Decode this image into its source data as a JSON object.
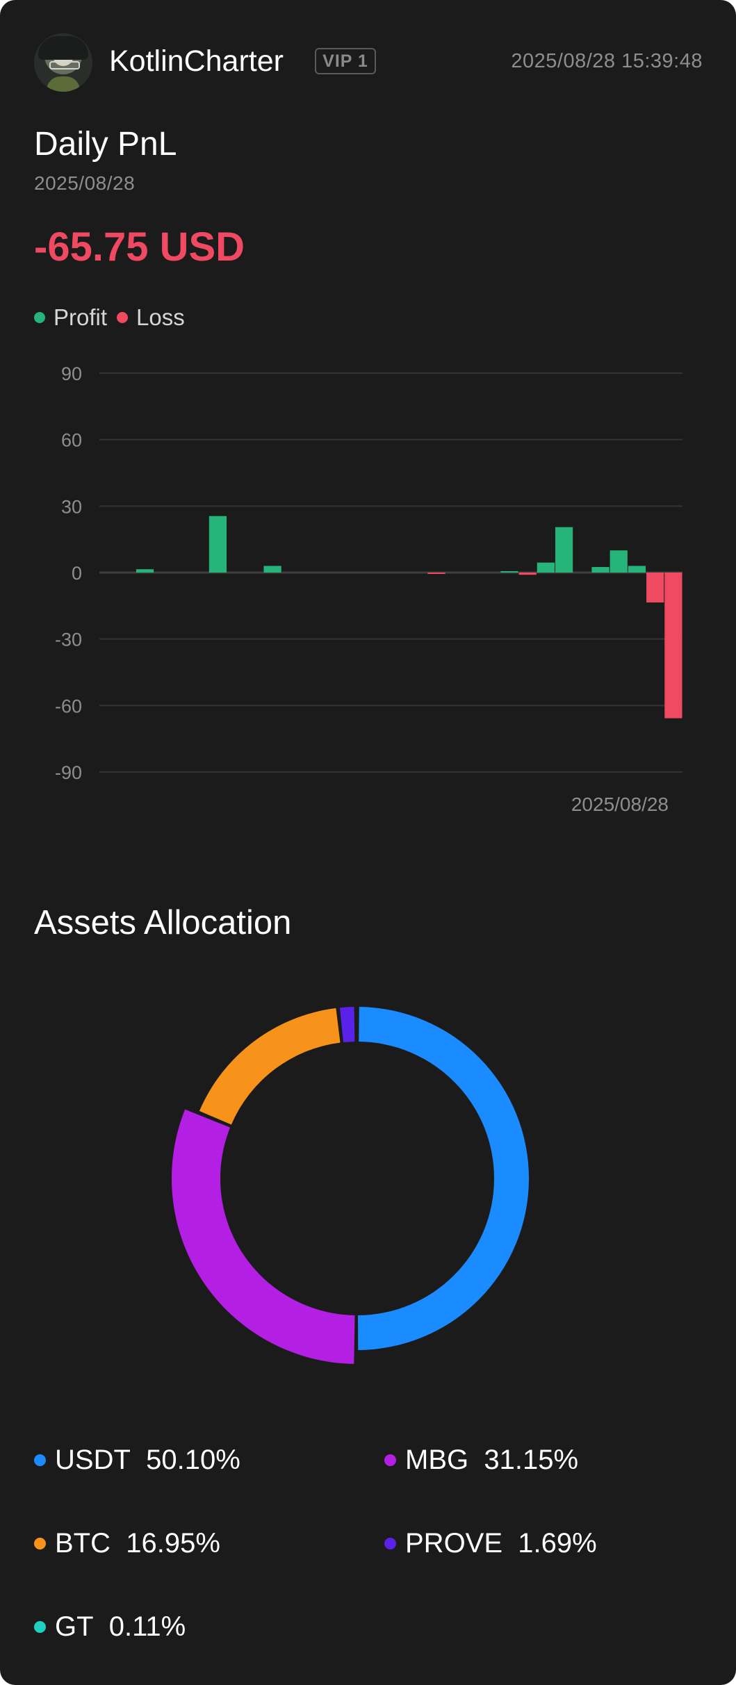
{
  "header": {
    "username": "KotlinCharter",
    "vip_label": "VIP 1",
    "timestamp": "2025/08/28 15:39:48"
  },
  "pnl_section": {
    "title": "Daily PnL",
    "date": "2025/08/28",
    "value": "-65.75 USD",
    "legend": [
      {
        "label": "Profit",
        "color": "#26b47a"
      },
      {
        "label": "Loss",
        "color": "#f04a63"
      }
    ]
  },
  "chart_data": {
    "type": "bar",
    "x_end_label": "2025/08/28",
    "ylim": [
      -90,
      90
    ],
    "yticks": [
      90,
      60,
      30,
      0,
      -30,
      -60,
      -90
    ],
    "grid": true,
    "colors": {
      "profit": "#26b47a",
      "loss": "#f04a63"
    },
    "values": [
      0,
      0,
      1.5,
      0,
      0,
      0,
      25.5,
      0,
      0,
      3,
      0,
      0,
      0,
      0,
      0,
      0,
      0,
      0,
      -0.5,
      0,
      0,
      0,
      0.5,
      -1,
      4.5,
      20.5,
      0,
      2.5,
      10,
      3,
      -13.5,
      -65.75
    ]
  },
  "assets_section": {
    "title": "Assets Allocation",
    "allocations": [
      {
        "name": "USDT",
        "percent": "50.10%",
        "value": 50.1,
        "color": "#1a8cff"
      },
      {
        "name": "MBG",
        "percent": "31.15%",
        "value": 31.15,
        "color": "#b31fe3"
      },
      {
        "name": "BTC",
        "percent": "16.95%",
        "value": 16.95,
        "color": "#f7931a"
      },
      {
        "name": "PROVE",
        "percent": "1.69%",
        "value": 1.69,
        "color": "#5a22e8"
      },
      {
        "name": "GT",
        "percent": "0.11%",
        "value": 0.11,
        "color": "#1fcfc1"
      }
    ]
  }
}
